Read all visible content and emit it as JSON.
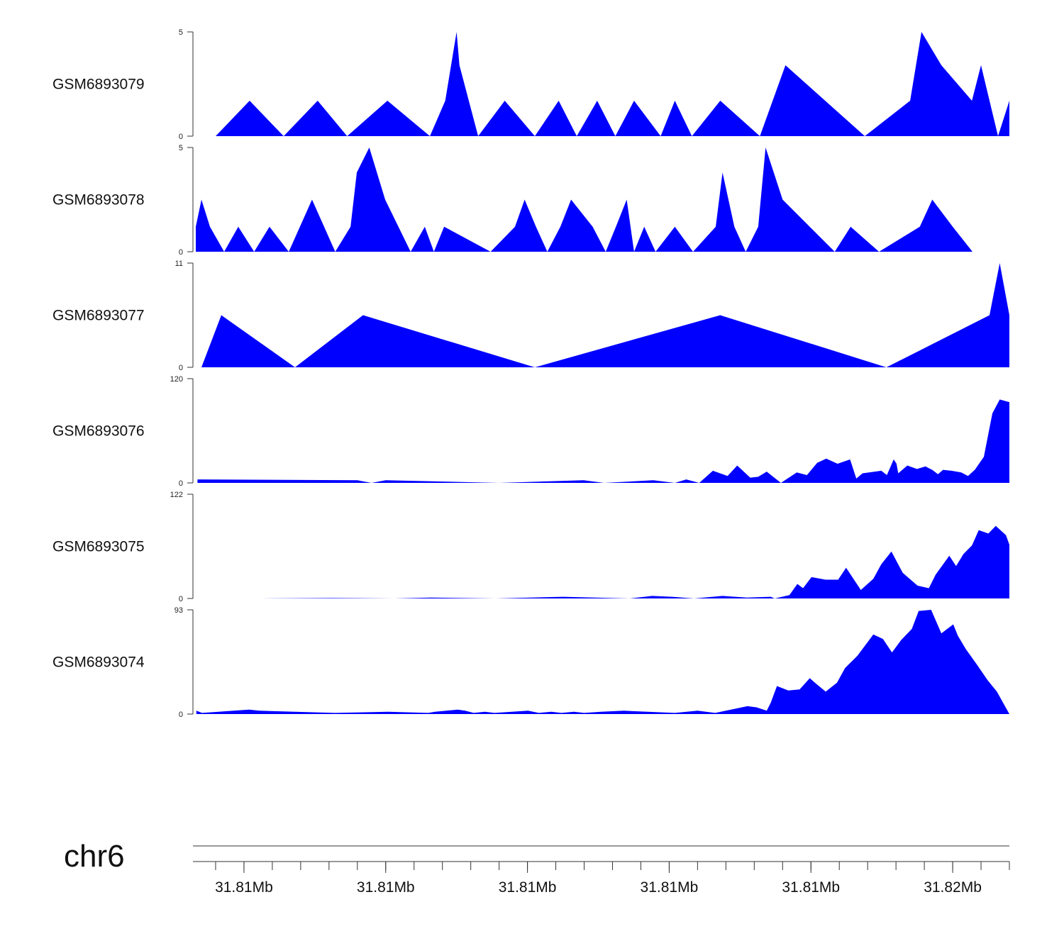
{
  "chart_data": {
    "type": "area",
    "title": "",
    "chromosome": "chr6",
    "x_unit": "bp",
    "xlim": [
      31805900,
      31820300
    ],
    "color": "#0000ff",
    "x_ticks": [
      {
        "pos": 31806800,
        "label": "31.81Mb"
      },
      {
        "pos": 31809300,
        "label": "31.81Mb"
      },
      {
        "pos": 31811800,
        "label": "31.81Mb"
      },
      {
        "pos": 31814300,
        "label": "31.81Mb"
      },
      {
        "pos": 31816800,
        "label": "31.81Mb"
      },
      {
        "pos": 31819300,
        "label": "31.82Mb"
      }
    ],
    "minor_tick_step": 500,
    "minor_tick_start": 31806300,
    "series": [
      {
        "name": "GSM6893079",
        "ylim": [
          0,
          5
        ],
        "y_ticks": [
          "0",
          "5"
        ],
        "x": [
          31806300,
          31806900,
          31807500,
          31808100,
          31808620,
          31809330,
          31810080,
          31810350,
          31810550,
          31810600,
          31810930,
          31811400,
          31811930,
          31812350,
          31812670,
          31813030,
          31813350,
          31813680,
          31814150,
          31814400,
          31814700,
          31815200,
          31815900,
          31816350,
          31817750,
          31818550,
          31818750,
          31819100,
          31819640,
          31819800,
          31820100,
          31820300
        ],
        "y": [
          0,
          1.7,
          0,
          1.7,
          0,
          1.7,
          0,
          1.7,
          5,
          3.4,
          0,
          1.7,
          0,
          1.7,
          0,
          1.7,
          0,
          1.7,
          0,
          1.7,
          0,
          1.7,
          0,
          3.4,
          0,
          1.7,
          5,
          3.4,
          1.7,
          3.4,
          0,
          1.7
        ]
      },
      {
        "name": "GSM6893078",
        "ylim": [
          0,
          5
        ],
        "y_ticks": [
          "0",
          "5"
        ],
        "x": [
          31805950,
          31806050,
          31806200,
          31806450,
          31806700,
          31806980,
          31807250,
          31807590,
          31808000,
          31808410,
          31808680,
          31808790,
          31809010,
          31809290,
          31809740,
          31809990,
          31810150,
          31810330,
          31811150,
          31811580,
          31811750,
          31811950,
          31812150,
          31812380,
          31812570,
          31812950,
          31813180,
          31813360,
          31813550,
          31813680,
          31813860,
          31814060,
          31814400,
          31814720,
          31815120,
          31815240,
          31815450,
          31815650,
          31815870,
          31816000,
          31816300,
          31817220,
          31817500,
          31818000,
          31818720,
          31818940,
          31819300,
          31819650
        ],
        "y": [
          1.2,
          2.5,
          1.2,
          0,
          1.2,
          0,
          1.2,
          0,
          2.5,
          0,
          1.2,
          3.8,
          5,
          2.5,
          0,
          1.2,
          0,
          1.2,
          0,
          1.2,
          2.5,
          1.2,
          0,
          1.2,
          2.5,
          1.2,
          0,
          1.2,
          2.5,
          0,
          1.2,
          0,
          1.2,
          0,
          1.2,
          3.8,
          1.2,
          0,
          1.2,
          5,
          2.5,
          0,
          1.2,
          0,
          1.2,
          2.5,
          1.2,
          0
        ]
      },
      {
        "name": "GSM6893077",
        "ylim": [
          0,
          11
        ],
        "y_ticks": [
          "0",
          "11"
        ],
        "x": [
          31806050,
          31806400,
          31807700,
          31808900,
          31811930,
          31815200,
          31818130,
          31819950,
          31820130,
          31820300,
          31820500
        ],
        "y": [
          0,
          5.5,
          0,
          5.5,
          0,
          5.5,
          0,
          5.5,
          11,
          5.5,
          0
        ]
      },
      {
        "name": "GSM6893076",
        "ylim": [
          0,
          120
        ],
        "y_ticks": [
          "0",
          "120"
        ],
        "x": [
          31805980,
          31808800,
          31809050,
          31809300,
          31811300,
          31812790,
          31813150,
          31814020,
          31814400,
          31814600,
          31814830,
          31815070,
          31815330,
          31815500,
          31815730,
          31815870,
          31816020,
          31816270,
          31816550,
          31816730,
          31816910,
          31817070,
          31817270,
          31817490,
          31817600,
          31817710,
          31818040,
          31818140,
          31818260,
          31818310,
          31818340,
          31818500,
          31818670,
          31818820,
          31818880,
          31818940,
          31819040,
          31819130,
          31819280,
          31819450,
          31819570,
          31819690,
          31819850,
          31820000,
          31820130,
          31820320,
          31820500
        ],
        "y": [
          4,
          3,
          0,
          3,
          0,
          3,
          0,
          3,
          0,
          4,
          0,
          14,
          8,
          20,
          6,
          7,
          13,
          0,
          12,
          9,
          23,
          28,
          22,
          27,
          5,
          11,
          14,
          9,
          27,
          22,
          11,
          20,
          16,
          19,
          17,
          15,
          10,
          15,
          14,
          12,
          8,
          15,
          30,
          80,
          96,
          93,
          120
        ]
      },
      {
        "name": "GSM6893075",
        "ylim": [
          0,
          122
        ],
        "y_ticks": [
          "0",
          "122"
        ],
        "x": [
          31807100,
          31808350,
          31809450,
          31810100,
          31811240,
          31812430,
          31813600,
          31814000,
          31814350,
          31814740,
          31815240,
          31815670,
          31816090,
          31816160,
          31816420,
          31816560,
          31816660,
          31816810,
          31817060,
          31817280,
          31817420,
          31817680,
          31817900,
          31818040,
          31818220,
          31818420,
          31818680,
          31818880,
          31819000,
          31819240,
          31819360,
          31819490,
          31819640,
          31819760,
          31819930,
          31820060,
          31820240,
          31820340,
          31820480,
          31820580
        ],
        "y": [
          0,
          0.5,
          0,
          1,
          0,
          2,
          0,
          3,
          2,
          0,
          3,
          1,
          2,
          0,
          4,
          17,
          12,
          25,
          22,
          22,
          36,
          10,
          23,
          40,
          55,
          30,
          15,
          12,
          28,
          50,
          38,
          52,
          62,
          80,
          76,
          85,
          74,
          63,
          70,
          95
        ]
      },
      {
        "name": "GSM6893074",
        "ylim": [
          0,
          93
        ],
        "y_ticks": [
          "0",
          "93"
        ],
        "x": [
          31805960,
          31806060,
          31806890,
          31807070,
          31808400,
          31809340,
          31810050,
          31810170,
          31810570,
          31810700,
          31810850,
          31811050,
          31811220,
          31811810,
          31812000,
          31812220,
          31812400,
          31812620,
          31812800,
          31813100,
          31813500,
          31814400,
          31814800,
          31815110,
          31815300,
          31815680,
          31815840,
          31816020,
          31816090,
          31816200,
          31816400,
          31816600,
          31816780,
          31816870,
          31817060,
          31817260,
          31817400,
          31817620,
          31817900,
          31818070,
          31818230,
          31818390,
          31818580,
          31818700,
          31818920,
          31819100,
          31819310,
          31819390,
          31819530,
          31819730,
          31819920,
          31820080,
          31820300
        ],
        "y": [
          3,
          1,
          4,
          3,
          1,
          2,
          1,
          2,
          4,
          3,
          1,
          2,
          1,
          3,
          1,
          2,
          1,
          2,
          1,
          2,
          3,
          1,
          3,
          1,
          3,
          7,
          6,
          3,
          10,
          25,
          21,
          22,
          32,
          28,
          20,
          28,
          41,
          52,
          71,
          67,
          55,
          66,
          76,
          92,
          93,
          72,
          80,
          70,
          58,
          44,
          30,
          20,
          0
        ]
      }
    ]
  }
}
